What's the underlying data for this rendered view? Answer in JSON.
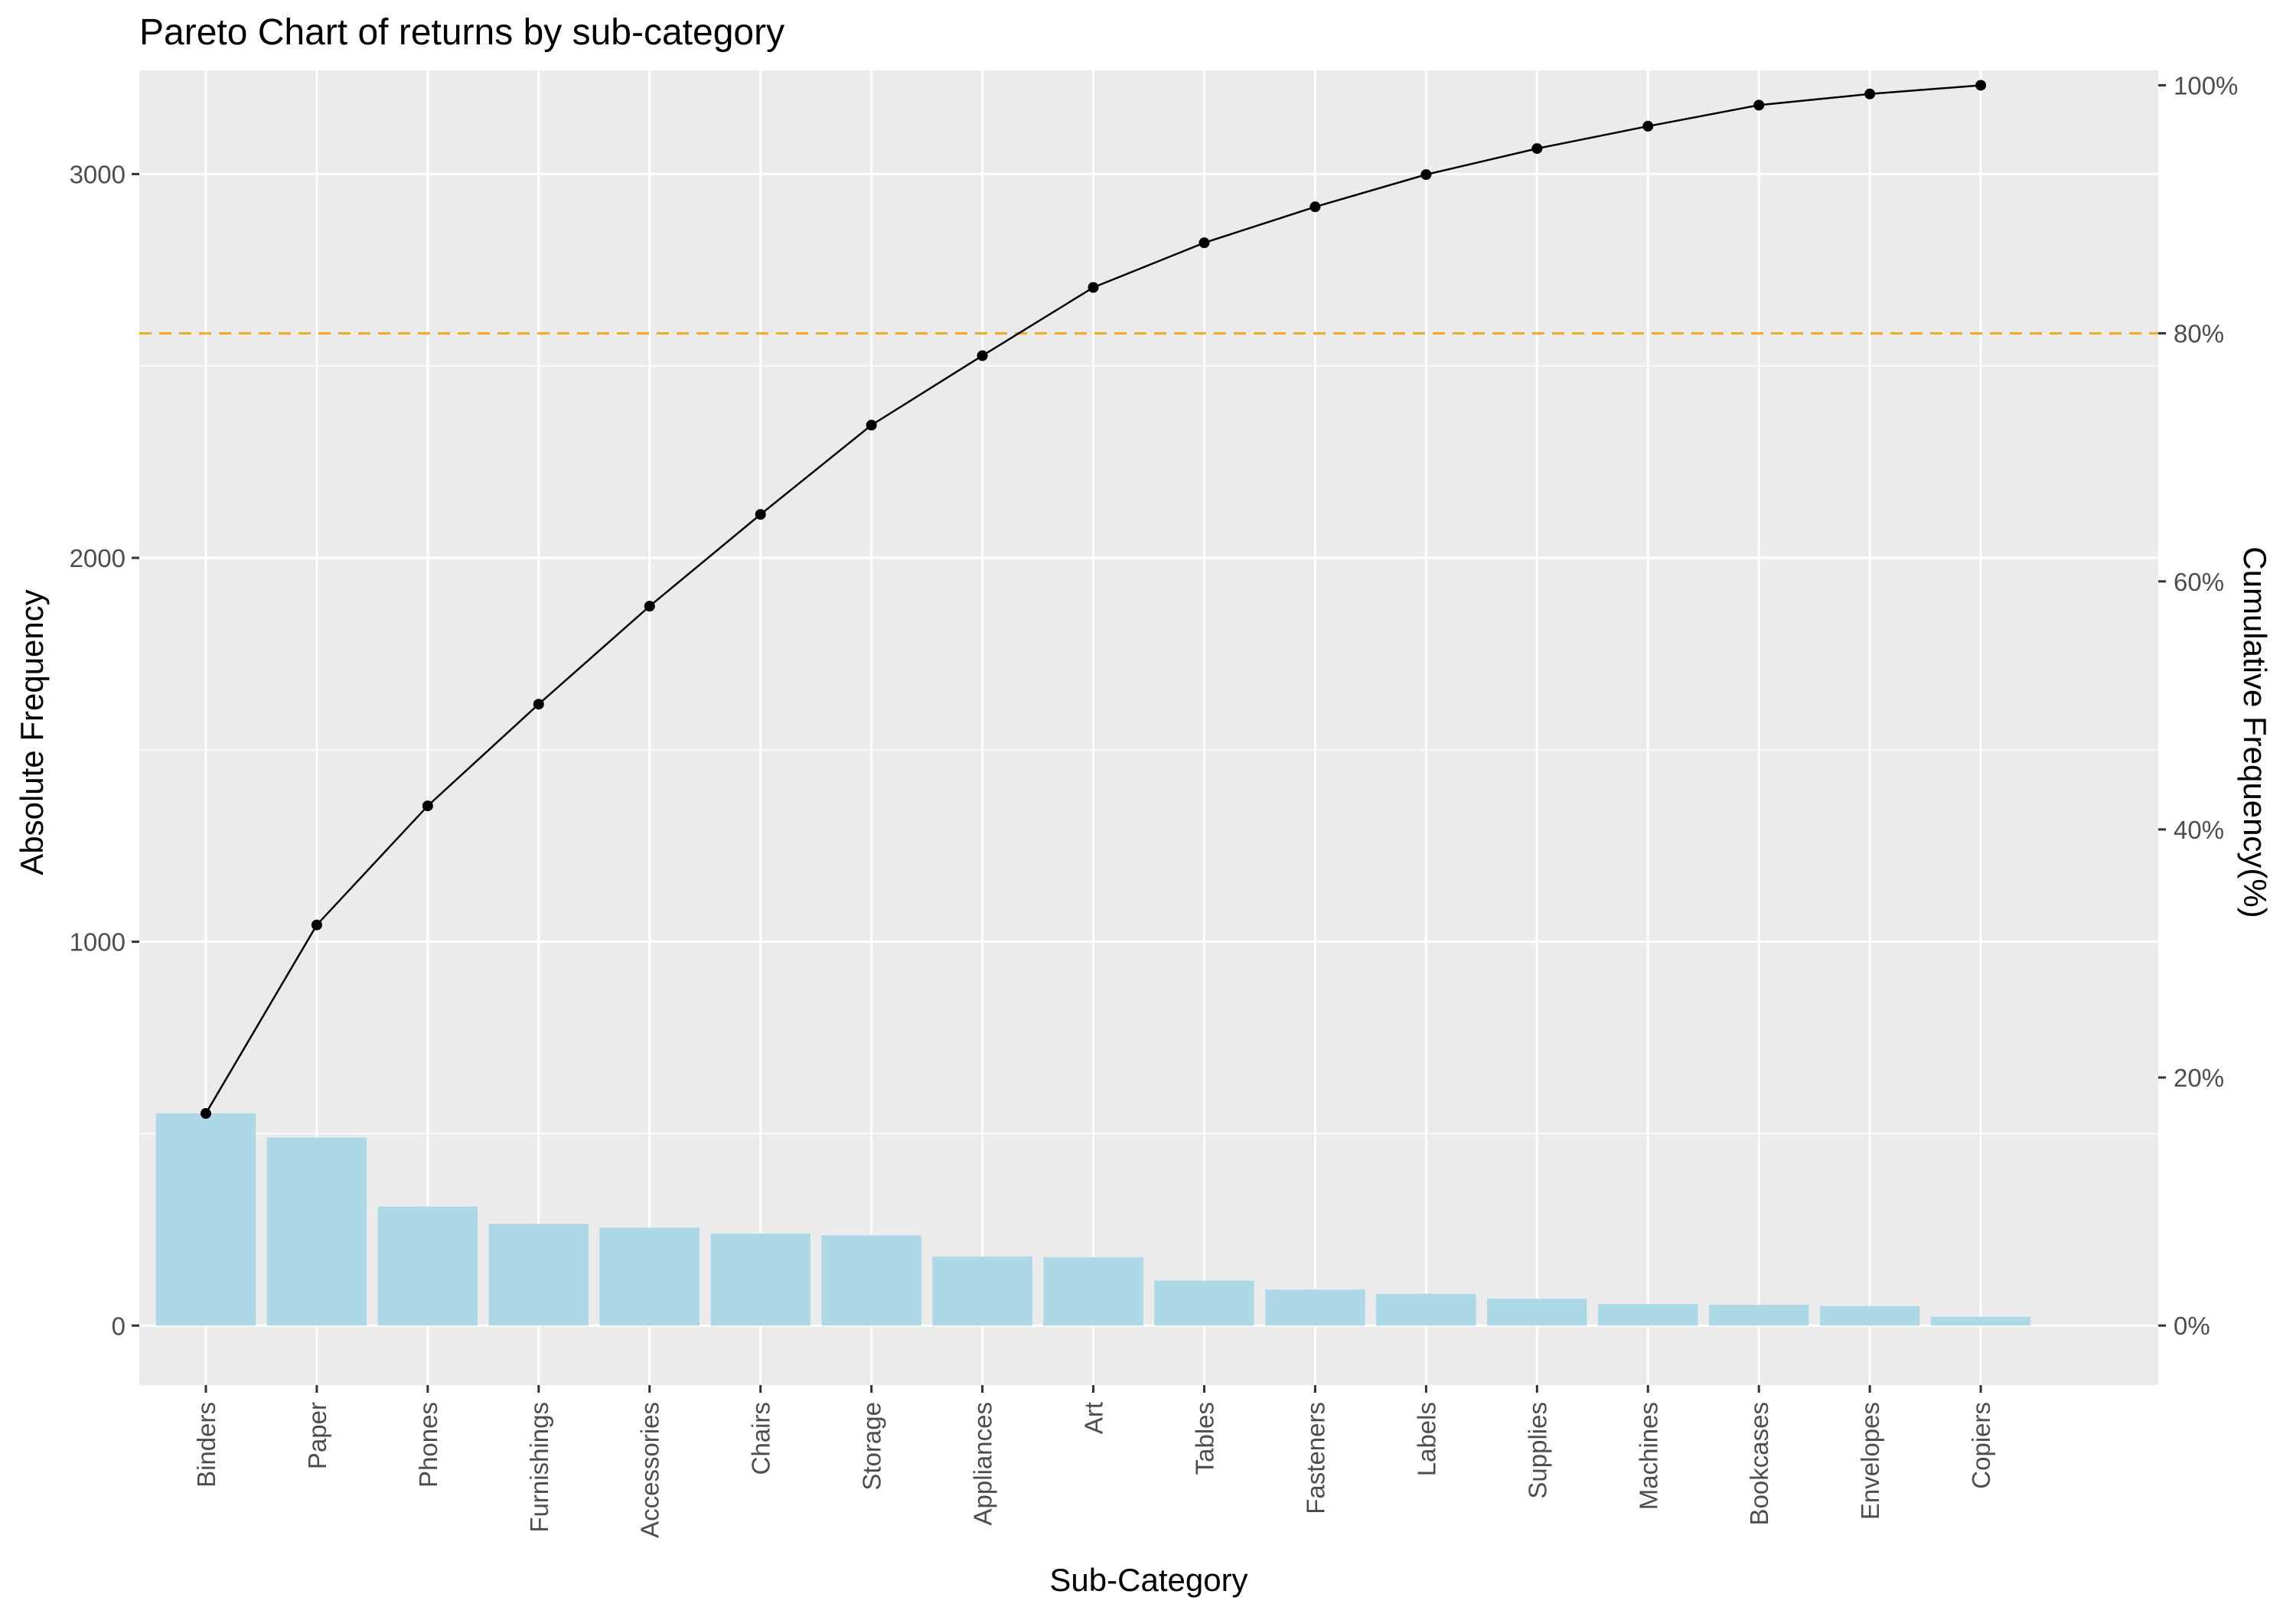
{
  "chart_data": {
    "type": "bar",
    "title": "Pareto Chart of returns by sub-category",
    "xlabel": "Sub-Category",
    "ylabel": "Absolute Frequency",
    "y2label": "Cumulative Frequency(%)",
    "categories": [
      "Binders",
      "Paper",
      "Phones",
      "Furnishings",
      "Accessories",
      "Chairs",
      "Storage",
      "Appliances",
      "Art",
      "Tables",
      "Fasteners",
      "Labels",
      "Supplies",
      "Machines",
      "Bookcases",
      "Envelopes",
      "Copiers"
    ],
    "series": [
      {
        "type": "bar",
        "values": [
          553,
          490,
          310,
          265,
          255,
          240,
          235,
          180,
          178,
          117,
          94,
          83,
          70,
          56,
          54,
          51,
          23
        ]
      },
      {
        "type": "line",
        "axis": "right",
        "values": [
          17.1,
          32.3,
          41.9,
          50.1,
          58.0,
          65.4,
          72.6,
          78.2,
          83.7,
          87.3,
          90.2,
          92.8,
          94.9,
          96.7,
          98.4,
          99.3,
          100.0
        ]
      }
    ],
    "reference_lines": [
      {
        "axis": "right",
        "value": 80,
        "style": "dashed",
        "color": "#f5a623"
      }
    ],
    "ylim": [
      -155,
      3270
    ],
    "y_ticks": [
      0,
      1000,
      2000,
      3000
    ],
    "y_tick_labels": [
      "0",
      "1000",
      "2000",
      "3000"
    ],
    "y2lim": [
      -4.8,
      101.2
    ],
    "y2_ticks": [
      0,
      20,
      40,
      60,
      80,
      100
    ],
    "y2_tick_labels": [
      "0%",
      "20%",
      "40%",
      "60%",
      "80%",
      "100%"
    ],
    "grid": true,
    "colors": {
      "panel": "#ebebeb",
      "grid": "#ffffff",
      "bar": "#add8e6",
      "line": "#000000",
      "threshold": "#f5a623",
      "tick_text": "#4d4d4d",
      "tick_mark": "#333333"
    }
  }
}
